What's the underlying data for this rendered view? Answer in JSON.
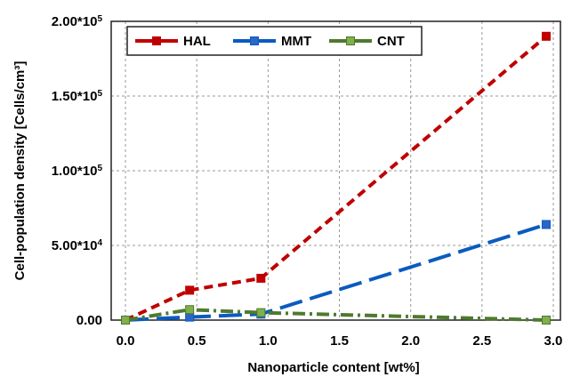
{
  "chart_data": {
    "type": "line",
    "title": "",
    "xlabel": "Nanoparticle content [wt%]",
    "ylabel": "Cell-population density [Cells/cm³]",
    "xlim": [
      -0.1,
      3.05
    ],
    "ylim": [
      0,
      200000
    ],
    "xticks": [
      0.0,
      0.5,
      1.0,
      1.5,
      2.0,
      2.5,
      3.0
    ],
    "xtick_labels": [
      "0.0",
      "0.5",
      "1.0",
      "1.5",
      "2.0",
      "2.5",
      "3.0"
    ],
    "yticks": [
      {
        "value": 0,
        "mantissa": "0.00",
        "exp": ""
      },
      {
        "value": 50000,
        "mantissa": "5.00*10",
        "exp": "4"
      },
      {
        "value": 100000,
        "mantissa": "1.00*10",
        "exp": "5"
      },
      {
        "value": 150000,
        "mantissa": "1.50*10",
        "exp": "5"
      },
      {
        "value": 200000,
        "mantissa": "2.00*10",
        "exp": "5"
      }
    ],
    "grid": true,
    "legend_position": "top-left",
    "series": [
      {
        "name": "HAL",
        "color": "#c00000",
        "marker_fill": "#c00000",
        "dash": "10,6",
        "x": [
          0,
          0.45,
          0.95,
          2.95
        ],
        "y": [
          0,
          20000,
          28000,
          190000
        ]
      },
      {
        "name": "MMT",
        "color": "#0a5bbf",
        "marker_fill": "#2a66c8",
        "dash": "26,9",
        "x": [
          0,
          0.45,
          0.95,
          2.95
        ],
        "y": [
          0,
          2000,
          4000,
          64000
        ]
      },
      {
        "name": "CNT",
        "color": "#4e7a2e",
        "marker_fill": "#7fb04a",
        "dash": "14,5,3,5",
        "x": [
          0,
          0.45,
          0.95,
          2.95
        ],
        "y": [
          0,
          7000,
          5000,
          0
        ]
      }
    ]
  }
}
